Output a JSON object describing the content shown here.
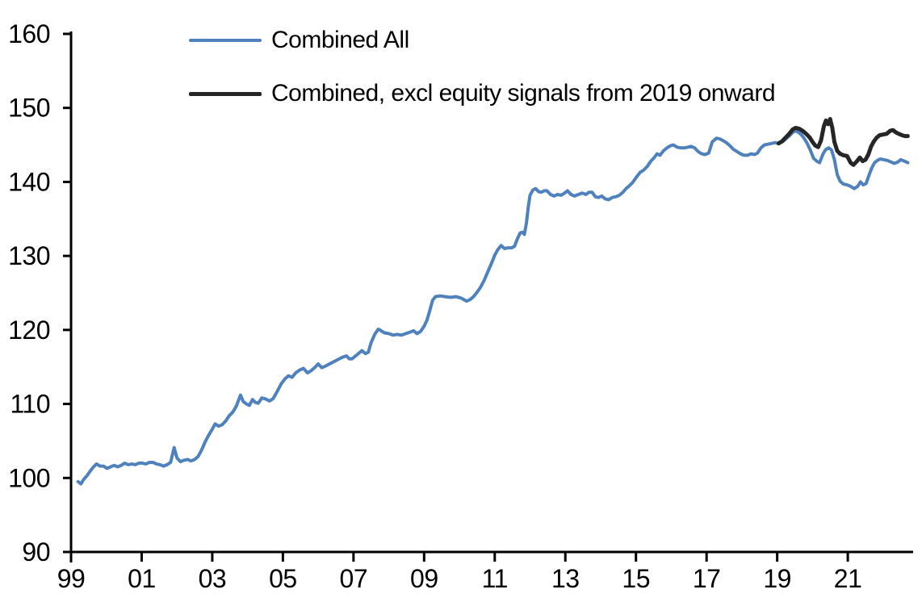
{
  "page": {
    "background": "#ffffff"
  },
  "chart_data": {
    "type": "line",
    "title": "",
    "grid": false,
    "legend_position": "top-left",
    "x_axis": {
      "label": "",
      "range": [
        1999,
        2022.85
      ],
      "tick_years": [
        1999,
        2001,
        2003,
        2005,
        2007,
        2009,
        2011,
        2013,
        2015,
        2017,
        2019,
        2021
      ],
      "tick_labels": [
        "99",
        "01",
        "03",
        "05",
        "07",
        "09",
        "11",
        "13",
        "15",
        "17",
        "19",
        "21"
      ]
    },
    "y_axis": {
      "label": "",
      "range": [
        90,
        160
      ],
      "ticks": [
        90,
        100,
        110,
        120,
        130,
        140,
        150,
        160
      ],
      "tick_labels": [
        "90",
        "100",
        "110",
        "120",
        "130",
        "140",
        "150",
        "160"
      ]
    },
    "axis_color": "#000000",
    "series": [
      {
        "name": "Combined All",
        "color": "#4f81bd",
        "width": 4,
        "points": [
          [
            1999.2,
            99.5
          ],
          [
            1999.28,
            99.2
          ],
          [
            1999.36,
            99.8
          ],
          [
            1999.45,
            100.3
          ],
          [
            1999.54,
            100.9
          ],
          [
            1999.62,
            101.4
          ],
          [
            1999.72,
            101.9
          ],
          [
            1999.82,
            101.6
          ],
          [
            1999.92,
            101.6
          ],
          [
            2000.02,
            101.3
          ],
          [
            2000.12,
            101.5
          ],
          [
            2000.22,
            101.7
          ],
          [
            2000.32,
            101.5
          ],
          [
            2000.42,
            101.7
          ],
          [
            2000.52,
            102.0
          ],
          [
            2000.62,
            101.8
          ],
          [
            2000.72,
            101.9
          ],
          [
            2000.82,
            101.8
          ],
          [
            2000.92,
            102.0
          ],
          [
            2001.02,
            102.0
          ],
          [
            2001.12,
            101.9
          ],
          [
            2001.22,
            102.1
          ],
          [
            2001.32,
            102.1
          ],
          [
            2001.42,
            101.9
          ],
          [
            2001.52,
            101.8
          ],
          [
            2001.62,
            101.6
          ],
          [
            2001.72,
            101.8
          ],
          [
            2001.82,
            102.1
          ],
          [
            2001.92,
            104.1
          ],
          [
            2002.0,
            102.7
          ],
          [
            2002.1,
            102.2
          ],
          [
            2002.2,
            102.4
          ],
          [
            2002.3,
            102.5
          ],
          [
            2002.4,
            102.3
          ],
          [
            2002.5,
            102.5
          ],
          [
            2002.6,
            102.9
          ],
          [
            2002.7,
            103.8
          ],
          [
            2002.8,
            104.9
          ],
          [
            2002.9,
            105.8
          ],
          [
            2003.0,
            106.6
          ],
          [
            2003.08,
            107.3
          ],
          [
            2003.18,
            107.0
          ],
          [
            2003.28,
            107.2
          ],
          [
            2003.38,
            107.7
          ],
          [
            2003.48,
            108.4
          ],
          [
            2003.58,
            108.9
          ],
          [
            2003.68,
            109.7
          ],
          [
            2003.8,
            111.2
          ],
          [
            2003.88,
            110.3
          ],
          [
            2003.97,
            110.0
          ],
          [
            2004.05,
            109.8
          ],
          [
            2004.14,
            110.6
          ],
          [
            2004.22,
            110.2
          ],
          [
            2004.3,
            110.1
          ],
          [
            2004.4,
            110.8
          ],
          [
            2004.5,
            110.7
          ],
          [
            2004.62,
            110.4
          ],
          [
            2004.72,
            110.7
          ],
          [
            2004.84,
            111.7
          ],
          [
            2004.95,
            112.7
          ],
          [
            2005.06,
            113.4
          ],
          [
            2005.16,
            113.8
          ],
          [
            2005.26,
            113.6
          ],
          [
            2005.36,
            114.2
          ],
          [
            2005.48,
            114.6
          ],
          [
            2005.58,
            114.8
          ],
          [
            2005.7,
            114.2
          ],
          [
            2005.8,
            114.5
          ],
          [
            2005.9,
            114.9
          ],
          [
            2006.0,
            115.4
          ],
          [
            2006.1,
            114.9
          ],
          [
            2006.2,
            115.1
          ],
          [
            2006.32,
            115.4
          ],
          [
            2006.44,
            115.7
          ],
          [
            2006.56,
            116.0
          ],
          [
            2006.68,
            116.3
          ],
          [
            2006.8,
            116.5
          ],
          [
            2006.88,
            116.1
          ],
          [
            2006.96,
            116.1
          ],
          [
            2007.06,
            116.5
          ],
          [
            2007.16,
            116.9
          ],
          [
            2007.24,
            117.2
          ],
          [
            2007.34,
            116.8
          ],
          [
            2007.42,
            117.0
          ],
          [
            2007.5,
            118.3
          ],
          [
            2007.6,
            119.4
          ],
          [
            2007.7,
            120.1
          ],
          [
            2007.78,
            119.9
          ],
          [
            2007.88,
            119.6
          ],
          [
            2008.0,
            119.5
          ],
          [
            2008.12,
            119.3
          ],
          [
            2008.24,
            119.4
          ],
          [
            2008.36,
            119.3
          ],
          [
            2008.48,
            119.5
          ],
          [
            2008.6,
            119.7
          ],
          [
            2008.7,
            119.9
          ],
          [
            2008.8,
            119.5
          ],
          [
            2008.9,
            119.8
          ],
          [
            2009.0,
            120.5
          ],
          [
            2009.08,
            121.3
          ],
          [
            2009.16,
            122.6
          ],
          [
            2009.24,
            124.0
          ],
          [
            2009.32,
            124.5
          ],
          [
            2009.45,
            124.6
          ],
          [
            2009.6,
            124.5
          ],
          [
            2009.75,
            124.4
          ],
          [
            2009.9,
            124.5
          ],
          [
            2010.05,
            124.3
          ],
          [
            2010.2,
            123.9
          ],
          [
            2010.3,
            124.1
          ],
          [
            2010.4,
            124.5
          ],
          [
            2010.5,
            125.1
          ],
          [
            2010.6,
            125.8
          ],
          [
            2010.7,
            126.7
          ],
          [
            2010.8,
            127.8
          ],
          [
            2010.9,
            128.9
          ],
          [
            2011.0,
            130.1
          ],
          [
            2011.08,
            130.8
          ],
          [
            2011.18,
            131.4
          ],
          [
            2011.28,
            131.0
          ],
          [
            2011.38,
            131.1
          ],
          [
            2011.48,
            131.1
          ],
          [
            2011.56,
            131.3
          ],
          [
            2011.64,
            132.3
          ],
          [
            2011.72,
            133.1
          ],
          [
            2011.78,
            133.2
          ],
          [
            2011.84,
            132.9
          ],
          [
            2011.9,
            134.5
          ],
          [
            2011.95,
            136.6
          ],
          [
            2012.0,
            138.2
          ],
          [
            2012.08,
            138.9
          ],
          [
            2012.16,
            139.1
          ],
          [
            2012.24,
            138.7
          ],
          [
            2012.32,
            138.6
          ],
          [
            2012.4,
            138.8
          ],
          [
            2012.48,
            138.8
          ],
          [
            2012.58,
            138.3
          ],
          [
            2012.68,
            138.1
          ],
          [
            2012.78,
            138.3
          ],
          [
            2012.88,
            138.2
          ],
          [
            2012.98,
            138.5
          ],
          [
            2013.06,
            138.8
          ],
          [
            2013.16,
            138.3
          ],
          [
            2013.26,
            138.1
          ],
          [
            2013.37,
            138.3
          ],
          [
            2013.48,
            138.5
          ],
          [
            2013.58,
            138.3
          ],
          [
            2013.67,
            138.6
          ],
          [
            2013.76,
            138.6
          ],
          [
            2013.85,
            138.0
          ],
          [
            2013.94,
            137.9
          ],
          [
            2014.03,
            138.1
          ],
          [
            2014.13,
            137.7
          ],
          [
            2014.23,
            137.6
          ],
          [
            2014.33,
            137.9
          ],
          [
            2014.43,
            138.0
          ],
          [
            2014.53,
            138.2
          ],
          [
            2014.63,
            138.6
          ],
          [
            2014.72,
            139.1
          ],
          [
            2014.82,
            139.5
          ],
          [
            2014.92,
            140.0
          ],
          [
            2015.02,
            140.7
          ],
          [
            2015.12,
            141.3
          ],
          [
            2015.22,
            141.6
          ],
          [
            2015.32,
            142.1
          ],
          [
            2015.42,
            142.8
          ],
          [
            2015.52,
            143.3
          ],
          [
            2015.6,
            143.8
          ],
          [
            2015.68,
            143.6
          ],
          [
            2015.78,
            144.2
          ],
          [
            2015.88,
            144.6
          ],
          [
            2015.98,
            144.9
          ],
          [
            2016.06,
            145.0
          ],
          [
            2016.16,
            144.7
          ],
          [
            2016.26,
            144.6
          ],
          [
            2016.38,
            144.6
          ],
          [
            2016.48,
            144.7
          ],
          [
            2016.56,
            144.8
          ],
          [
            2016.66,
            144.6
          ],
          [
            2016.76,
            144.1
          ],
          [
            2016.86,
            143.8
          ],
          [
            2016.96,
            143.7
          ],
          [
            2017.06,
            143.9
          ],
          [
            2017.16,
            145.4
          ],
          [
            2017.28,
            145.9
          ],
          [
            2017.38,
            145.8
          ],
          [
            2017.46,
            145.6
          ],
          [
            2017.56,
            145.3
          ],
          [
            2017.66,
            144.9
          ],
          [
            2017.76,
            144.4
          ],
          [
            2017.86,
            144.1
          ],
          [
            2017.96,
            143.8
          ],
          [
            2018.06,
            143.6
          ],
          [
            2018.16,
            143.6
          ],
          [
            2018.26,
            143.8
          ],
          [
            2018.36,
            143.7
          ],
          [
            2018.44,
            143.9
          ],
          [
            2018.54,
            144.6
          ],
          [
            2018.64,
            145.0
          ],
          [
            2018.74,
            145.1
          ],
          [
            2018.84,
            145.2
          ],
          [
            2018.94,
            145.3
          ],
          [
            2019.04,
            145.2
          ],
          [
            2019.14,
            145.4
          ],
          [
            2019.24,
            145.8
          ],
          [
            2019.34,
            146.2
          ],
          [
            2019.44,
            146.7
          ],
          [
            2019.52,
            146.9
          ],
          [
            2019.6,
            146.7
          ],
          [
            2019.68,
            146.4
          ],
          [
            2019.76,
            145.9
          ],
          [
            2019.85,
            145.2
          ],
          [
            2019.94,
            144.3
          ],
          [
            2020.03,
            143.2
          ],
          [
            2020.12,
            142.8
          ],
          [
            2020.2,
            142.6
          ],
          [
            2020.3,
            143.8
          ],
          [
            2020.38,
            144.4
          ],
          [
            2020.46,
            144.6
          ],
          [
            2020.54,
            144.3
          ],
          [
            2020.62,
            143.0
          ],
          [
            2020.7,
            141.0
          ],
          [
            2020.78,
            140.1
          ],
          [
            2020.88,
            139.7
          ],
          [
            2020.98,
            139.6
          ],
          [
            2021.08,
            139.4
          ],
          [
            2021.18,
            139.1
          ],
          [
            2021.28,
            139.4
          ],
          [
            2021.36,
            140.0
          ],
          [
            2021.44,
            139.6
          ],
          [
            2021.52,
            139.8
          ],
          [
            2021.6,
            140.9
          ],
          [
            2021.68,
            141.9
          ],
          [
            2021.76,
            142.6
          ],
          [
            2021.84,
            142.9
          ],
          [
            2021.92,
            143.1
          ],
          [
            2022.02,
            143.0
          ],
          [
            2022.12,
            142.9
          ],
          [
            2022.22,
            142.7
          ],
          [
            2022.32,
            142.5
          ],
          [
            2022.42,
            142.7
          ],
          [
            2022.5,
            143.0
          ],
          [
            2022.6,
            142.8
          ],
          [
            2022.7,
            142.6
          ]
        ]
      },
      {
        "name": "Combined, excl equity signals from 2019 onward",
        "color": "#262626",
        "width": 5,
        "points": [
          [
            2019.04,
            145.2
          ],
          [
            2019.14,
            145.5
          ],
          [
            2019.24,
            146.0
          ],
          [
            2019.34,
            146.5
          ],
          [
            2019.44,
            147.1
          ],
          [
            2019.52,
            147.3
          ],
          [
            2019.62,
            147.2
          ],
          [
            2019.72,
            146.9
          ],
          [
            2019.82,
            146.5
          ],
          [
            2019.92,
            146.0
          ],
          [
            2020.0,
            145.4
          ],
          [
            2020.08,
            144.9
          ],
          [
            2020.16,
            144.7
          ],
          [
            2020.24,
            145.6
          ],
          [
            2020.32,
            147.5
          ],
          [
            2020.38,
            148.3
          ],
          [
            2020.44,
            147.8
          ],
          [
            2020.5,
            148.5
          ],
          [
            2020.56,
            147.3
          ],
          [
            2020.62,
            145.4
          ],
          [
            2020.7,
            144.2
          ],
          [
            2020.78,
            143.8
          ],
          [
            2020.88,
            143.6
          ],
          [
            2020.98,
            143.5
          ],
          [
            2021.08,
            142.6
          ],
          [
            2021.16,
            142.3
          ],
          [
            2021.26,
            142.8
          ],
          [
            2021.34,
            143.3
          ],
          [
            2021.42,
            142.8
          ],
          [
            2021.5,
            143.0
          ],
          [
            2021.58,
            143.7
          ],
          [
            2021.66,
            144.8
          ],
          [
            2021.74,
            145.5
          ],
          [
            2021.82,
            146.0
          ],
          [
            2021.9,
            146.3
          ],
          [
            2022.0,
            146.4
          ],
          [
            2022.1,
            146.5
          ],
          [
            2022.2,
            146.9
          ],
          [
            2022.28,
            147.0
          ],
          [
            2022.36,
            146.7
          ],
          [
            2022.44,
            146.5
          ],
          [
            2022.54,
            146.3
          ],
          [
            2022.62,
            146.2
          ],
          [
            2022.7,
            146.2
          ]
        ]
      }
    ]
  }
}
